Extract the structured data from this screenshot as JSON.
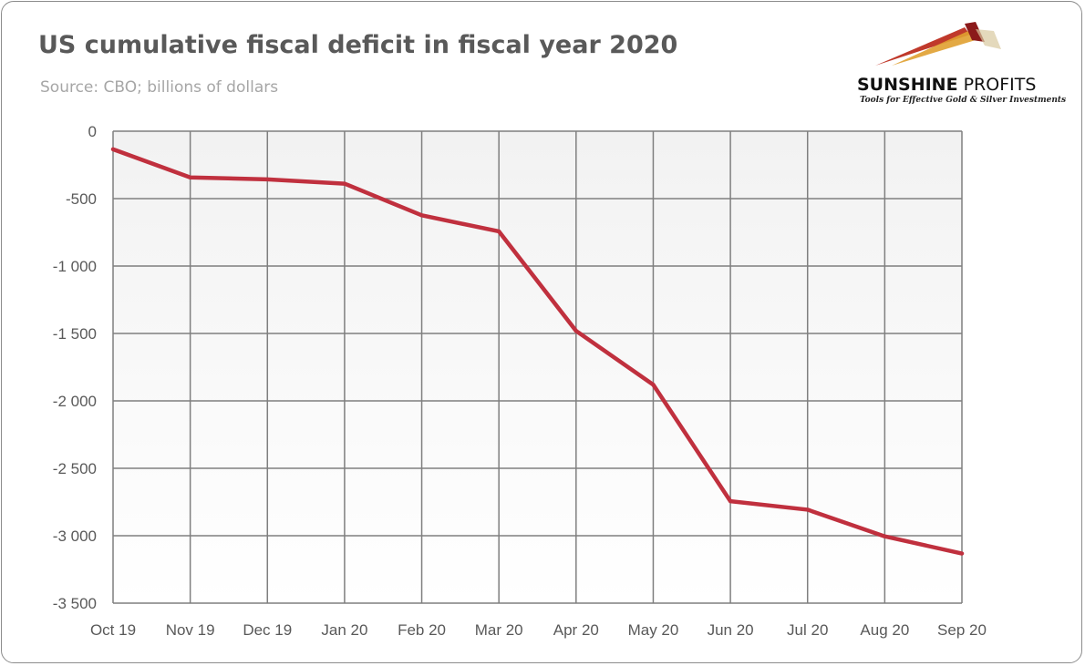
{
  "title": "US cumulative fiscal deficit in fiscal year 2020",
  "subtitle": "Source: CBO; billions of dollars",
  "logo": {
    "name_part1": "SUNSHINE",
    "name_part2": " PROFITS",
    "tagline": "Tools for Effective Gold & Silver Investments",
    "colors": [
      "#c0392b",
      "#e0a030",
      "#8b1a1a"
    ]
  },
  "chart_data": {
    "type": "line",
    "title": "US cumulative fiscal deficit in fiscal year 2020",
    "subtitle": "Source: CBO; billions of dollars",
    "categories": [
      "Oct 19",
      "Nov 19",
      "Dec 19",
      "Jan 20",
      "Feb 20",
      "Mar 20",
      "Apr 20",
      "May 20",
      "Jun 20",
      "Jul 20",
      "Aug 20",
      "Sep 20"
    ],
    "series": [
      {
        "values": [
          -134,
          -343,
          -357,
          -389,
          -624,
          -743,
          -1481,
          -1880,
          -2744,
          -2807,
          -3005,
          -3132
        ],
        "color": "#c0303e"
      }
    ],
    "ylim": [
      -3500,
      0
    ],
    "yticks": [
      0,
      -500,
      -1000,
      -1500,
      -2000,
      -2500,
      -3000,
      -3500
    ],
    "ytick_labels": [
      "0",
      "-500",
      "-1 000",
      "-1 500",
      "-2 000",
      "-2 500",
      "-3 000",
      "-3 500"
    ],
    "grid": true,
    "plot_background": "gradient #f2f2f2 to #ffffff",
    "grid_color": "#7f7f7f"
  }
}
